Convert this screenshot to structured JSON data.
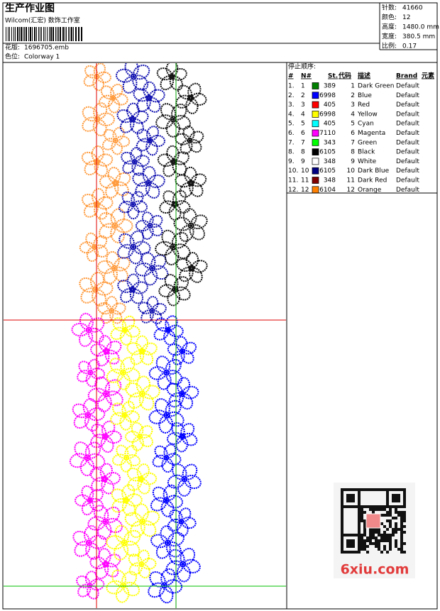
{
  "header": {
    "title": "生产作业图",
    "studio": "Wilcom(汇宏) 数饰工作室",
    "file_label": "花版:",
    "file": "1696705.emb",
    "colorway_label": "色位:",
    "colorway": "Colorway 1"
  },
  "info": [
    {
      "label": "针数:",
      "value": "41660"
    },
    {
      "label": "颜色:",
      "value": "12"
    },
    {
      "label": "高度:",
      "value": "1480.0 mm"
    },
    {
      "label": "宽度:",
      "value": "380.5 mm"
    },
    {
      "label": "比例:",
      "value": "0.17"
    }
  ],
  "table": {
    "title": "停止顺序:",
    "columns": [
      "#",
      "N#",
      "St.",
      "代码",
      "描述",
      "Brand",
      "元素"
    ],
    "rows": [
      {
        "index": "1.",
        "n": "1",
        "color": "#008000",
        "stitches": "389",
        "code": "1",
        "description": "Dark Green",
        "brand": "Default"
      },
      {
        "index": "2.",
        "n": "2",
        "color": "#0000ff",
        "stitches": "6998",
        "code": "2",
        "description": "Blue",
        "brand": "Default"
      },
      {
        "index": "3.",
        "n": "3",
        "color": "#ff0000",
        "stitches": "405",
        "code": "3",
        "description": "Red",
        "brand": "Default"
      },
      {
        "index": "4.",
        "n": "4",
        "color": "#ffff00",
        "stitches": "6998",
        "code": "4",
        "description": "Yellow",
        "brand": "Default"
      },
      {
        "index": "5.",
        "n": "5",
        "color": "#00ffff",
        "stitches": "405",
        "code": "5",
        "description": "Cyan",
        "brand": "Default"
      },
      {
        "index": "6.",
        "n": "6",
        "color": "#ff00ff",
        "stitches": "7110",
        "code": "6",
        "description": "Magenta",
        "brand": "Default"
      },
      {
        "index": "7.",
        "n": "7",
        "color": "#00ff00",
        "stitches": "343",
        "code": "7",
        "description": "Green",
        "brand": "Default"
      },
      {
        "index": "8.",
        "n": "8",
        "color": "#000000",
        "stitches": "6105",
        "code": "8",
        "description": "Black",
        "brand": "Default"
      },
      {
        "index": "9.",
        "n": "9",
        "color": "#ffffff",
        "stitches": "348",
        "code": "9",
        "description": "White",
        "brand": "Default"
      },
      {
        "index": "10.",
        "n": "10",
        "color": "#000080",
        "stitches": "6105",
        "code": "10",
        "description": "Dark Blue",
        "brand": "Default"
      },
      {
        "index": "11.",
        "n": "11",
        "color": "#800000",
        "stitches": "348",
        "code": "11",
        "description": "Dark Red",
        "brand": "Default"
      },
      {
        "index": "12.",
        "n": "12",
        "color": "#ff8000",
        "stitches": "6104",
        "code": "12",
        "description": "Orange",
        "brand": "Default"
      }
    ]
  },
  "watermark": "6xiu.com"
}
